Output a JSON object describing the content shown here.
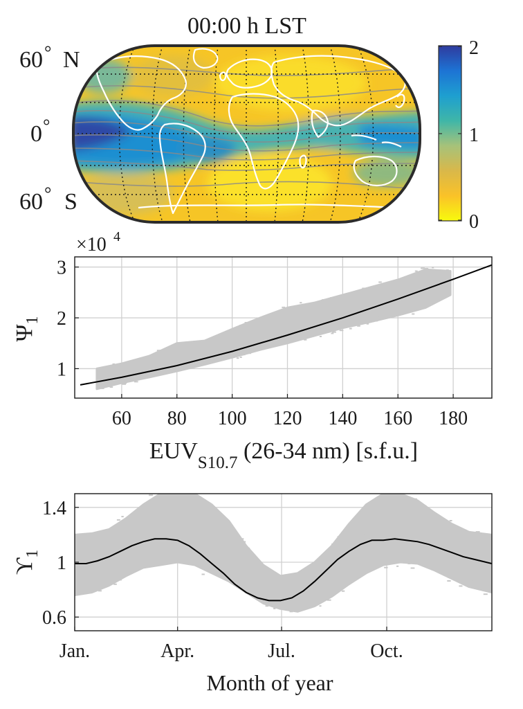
{
  "map": {
    "title": "00:00 h LST",
    "lat_labels": [
      {
        "text": "60",
        "deg": "°",
        "hem": "N"
      },
      {
        "text": "0",
        "deg": "°",
        "hem": ""
      },
      {
        "text": "60",
        "deg": "°",
        "hem": "S"
      }
    ],
    "colorbar": {
      "ticks": [
        "2",
        "1",
        "0"
      ],
      "range": [
        0,
        2
      ],
      "colors": [
        "#f8fa0d",
        "#fac228",
        "#d9b84a",
        "#a6c27a",
        "#3fb6a8",
        "#1e9fd0",
        "#1d73d4",
        "#2f3b9e"
      ]
    },
    "colors": {
      "land_outline": "#ffffff",
      "contour": "#8a8a8a",
      "grid": "#1a1a1a",
      "border": "#2b2b2b"
    }
  },
  "chart_data": [
    {
      "type": "scatter",
      "xlabel": "EUV",
      "xlabel_sub": "S10.7",
      "xlabel_rest": " (26-34 nm) [s.f.u.]",
      "ylabel": "Ψ",
      "ylabel_sub": "1",
      "exponent_label": "×10",
      "exponent_power": "4",
      "xlim": [
        43,
        194
      ],
      "ylim": [
        0.42,
        3.2
      ],
      "x_ticks": [
        60,
        80,
        100,
        120,
        140,
        160,
        180
      ],
      "y_ticks": [
        1,
        2,
        3
      ],
      "grid": true,
      "scatter_color": "#c8c8c8",
      "band": {
        "x": [
          51,
          60,
          70,
          80,
          90,
          100,
          110,
          120,
          130,
          140,
          150,
          160,
          170,
          179
        ],
        "low": [
          0.6,
          0.72,
          0.83,
          0.95,
          1.08,
          1.22,
          1.37,
          1.5,
          1.65,
          1.8,
          1.92,
          2.05,
          2.2,
          2.45
        ],
        "high": [
          1.0,
          1.1,
          1.25,
          1.5,
          1.55,
          1.78,
          2.0,
          2.2,
          2.3,
          2.45,
          2.6,
          2.75,
          2.95,
          2.92
        ]
      },
      "fit_line": {
        "x": [
          45,
          60,
          80,
          100,
          120,
          140,
          160,
          180,
          194
        ],
        "y": [
          0.68,
          0.83,
          1.06,
          1.34,
          1.66,
          2.0,
          2.37,
          2.76,
          3.04
        ],
        "color": "#000000"
      }
    },
    {
      "type": "line",
      "xlabel": "Month of year",
      "ylabel": "ϒ",
      "ylabel_sub": "1",
      "xlim": [
        0,
        365
      ],
      "ylim": [
        0.5,
        1.5
      ],
      "x_ticks": [
        {
          "value": 0,
          "label": "Jan."
        },
        {
          "value": 90,
          "label": "Apr."
        },
        {
          "value": 181,
          "label": "Jul."
        },
        {
          "value": 273,
          "label": "Oct."
        }
      ],
      "y_ticks": [
        {
          "value": 0.6,
          "label": "0.6"
        },
        {
          "value": 1.0,
          "label": "1"
        },
        {
          "value": 1.4,
          "label": "1.4"
        }
      ],
      "grid": true,
      "scatter_color": "#c8c8c8",
      "band": {
        "x": [
          0,
          15,
          30,
          45,
          60,
          75,
          90,
          105,
          120,
          135,
          150,
          165,
          180,
          195,
          210,
          225,
          240,
          255,
          270,
          285,
          300,
          315,
          330,
          345,
          365
        ],
        "low": [
          0.76,
          0.78,
          0.83,
          0.9,
          0.96,
          0.98,
          1.0,
          0.98,
          0.92,
          0.86,
          0.78,
          0.7,
          0.66,
          0.64,
          0.68,
          0.75,
          0.84,
          0.92,
          0.98,
          1.0,
          0.99,
          0.94,
          0.88,
          0.82,
          0.78
        ],
        "high": [
          1.2,
          1.21,
          1.24,
          1.32,
          1.42,
          1.5,
          1.5,
          1.5,
          1.42,
          1.3,
          1.12,
          0.98,
          0.9,
          0.92,
          1.0,
          1.12,
          1.28,
          1.42,
          1.5,
          1.5,
          1.45,
          1.36,
          1.28,
          1.22,
          1.2
        ]
      },
      "fit_line": {
        "x": [
          0,
          10,
          20,
          30,
          40,
          50,
          60,
          70,
          80,
          90,
          100,
          110,
          120,
          130,
          140,
          150,
          160,
          170,
          180,
          190,
          200,
          210,
          220,
          230,
          240,
          250,
          260,
          270,
          280,
          290,
          300,
          310,
          320,
          330,
          340,
          350,
          365
        ],
        "y": [
          0.99,
          0.99,
          1.01,
          1.04,
          1.08,
          1.12,
          1.15,
          1.17,
          1.17,
          1.16,
          1.12,
          1.06,
          0.99,
          0.92,
          0.84,
          0.78,
          0.74,
          0.72,
          0.72,
          0.74,
          0.79,
          0.86,
          0.94,
          1.02,
          1.08,
          1.13,
          1.16,
          1.16,
          1.17,
          1.16,
          1.15,
          1.13,
          1.1,
          1.07,
          1.04,
          1.02,
          0.99
        ],
        "color": "#000000"
      }
    }
  ]
}
